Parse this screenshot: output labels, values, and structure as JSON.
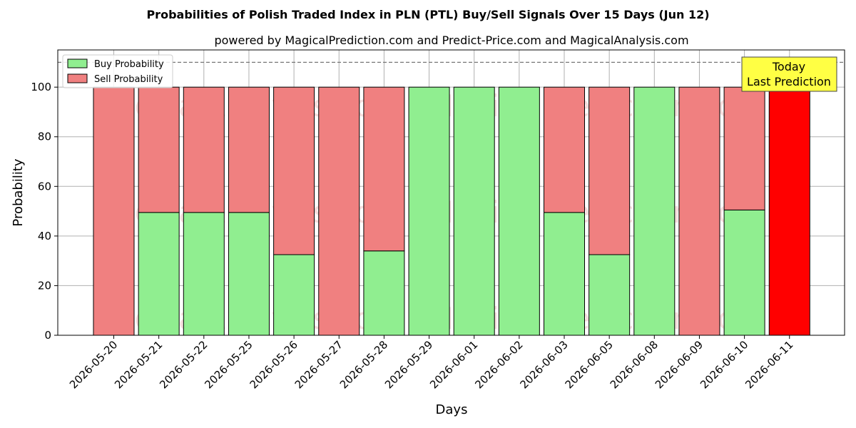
{
  "chart_data": {
    "type": "bar",
    "stacked": true,
    "title": "Probabilities of Polish Traded Index in PLN (PTL) Buy/Sell Signals Over 15 Days (Jun 12)",
    "subtitle": "powered by MagicalPrediction.com and Predict-Price.com and MagicalAnalysis.com",
    "xlabel": "Days",
    "ylabel": "Probability",
    "ylim": [
      0,
      115
    ],
    "yticks": [
      0,
      20,
      40,
      60,
      80,
      100
    ],
    "grid": true,
    "legend_position": "top-left",
    "reference_line": 110,
    "categories": [
      "2026-05-20",
      "2026-05-21",
      "2026-05-22",
      "2026-05-25",
      "2026-05-26",
      "2026-05-27",
      "2026-05-28",
      "2026-05-29",
      "2026-06-01",
      "2026-06-02",
      "2026-06-03",
      "2026-06-05",
      "2026-06-08",
      "2026-06-09",
      "2026-06-10",
      "2026-06-11"
    ],
    "series": [
      {
        "name": "Buy Probability",
        "color": "#90ee90",
        "values": [
          0,
          49.5,
          49.5,
          49.5,
          32.5,
          0,
          34,
          100,
          100,
          100,
          49.5,
          32.5,
          100,
          0,
          50.5,
          0
        ]
      },
      {
        "name": "Sell Probability",
        "color": "#f08080",
        "values": [
          100,
          50.5,
          50.5,
          50.5,
          67.5,
          100,
          66,
          0,
          0,
          0,
          50.5,
          67.5,
          0,
          100,
          49.5,
          100
        ]
      }
    ],
    "highlight": {
      "index": 15,
      "color": "#ff0000"
    },
    "annotation": {
      "line1": "Today",
      "line2": "Last Prediction",
      "color": "#ffff44"
    },
    "watermarks": [
      "MagicalAnalysis.com",
      "MagicalPrediction.com"
    ]
  }
}
